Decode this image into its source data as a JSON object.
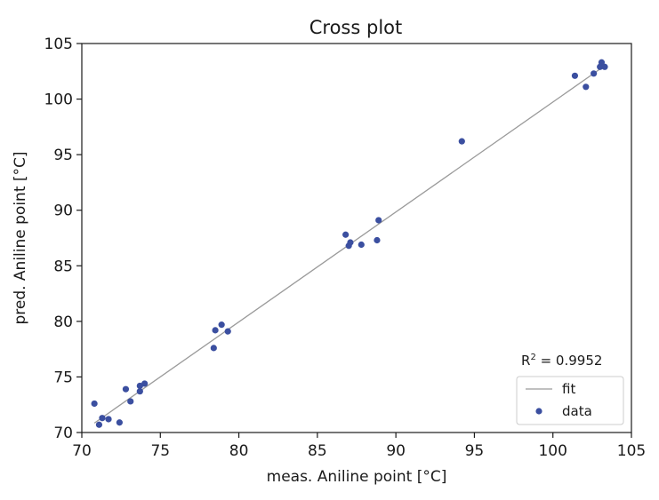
{
  "chart_data": {
    "type": "scatter",
    "title": "Cross plot",
    "xlabel": "meas. Aniline point [°C]",
    "ylabel": "pred. Aniline point [°C]",
    "xlim": [
      70,
      105
    ],
    "ylim": [
      70,
      105
    ],
    "xticks": [
      "70",
      "75",
      "80",
      "85",
      "90",
      "95",
      "100",
      "105"
    ],
    "yticks": [
      "70",
      "75",
      "80",
      "85",
      "90",
      "95",
      "100",
      "105"
    ],
    "grid": false,
    "legend_position": "bottom-right",
    "annotation": {
      "prefix": "R",
      "superscript": "2",
      "suffix": " = 0.9952"
    },
    "series": [
      {
        "name": "fit",
        "kind": "line",
        "color": "#9a9a9a",
        "x": [
          70.8,
          103.3
        ],
        "y": [
          70.85,
          103.0
        ]
      },
      {
        "name": "data",
        "kind": "scatter",
        "color": "#3b4fa0",
        "points": [
          [
            70.8,
            72.6
          ],
          [
            71.1,
            70.7
          ],
          [
            71.3,
            71.3
          ],
          [
            71.7,
            71.2
          ],
          [
            72.4,
            70.9
          ],
          [
            72.8,
            73.9
          ],
          [
            73.1,
            72.8
          ],
          [
            73.7,
            73.7
          ],
          [
            73.7,
            74.2
          ],
          [
            74.0,
            74.4
          ],
          [
            78.4,
            77.6
          ],
          [
            78.5,
            79.2
          ],
          [
            78.9,
            79.7
          ],
          [
            79.3,
            79.1
          ],
          [
            86.8,
            87.8
          ],
          [
            87.0,
            86.8
          ],
          [
            87.1,
            87.1
          ],
          [
            87.8,
            86.9
          ],
          [
            88.8,
            87.3
          ],
          [
            88.9,
            89.1
          ],
          [
            94.2,
            96.2
          ],
          [
            101.4,
            102.1
          ],
          [
            102.1,
            101.1
          ],
          [
            102.6,
            102.3
          ],
          [
            103.0,
            102.9
          ],
          [
            103.1,
            103.3
          ],
          [
            103.3,
            102.9
          ]
        ]
      }
    ]
  }
}
